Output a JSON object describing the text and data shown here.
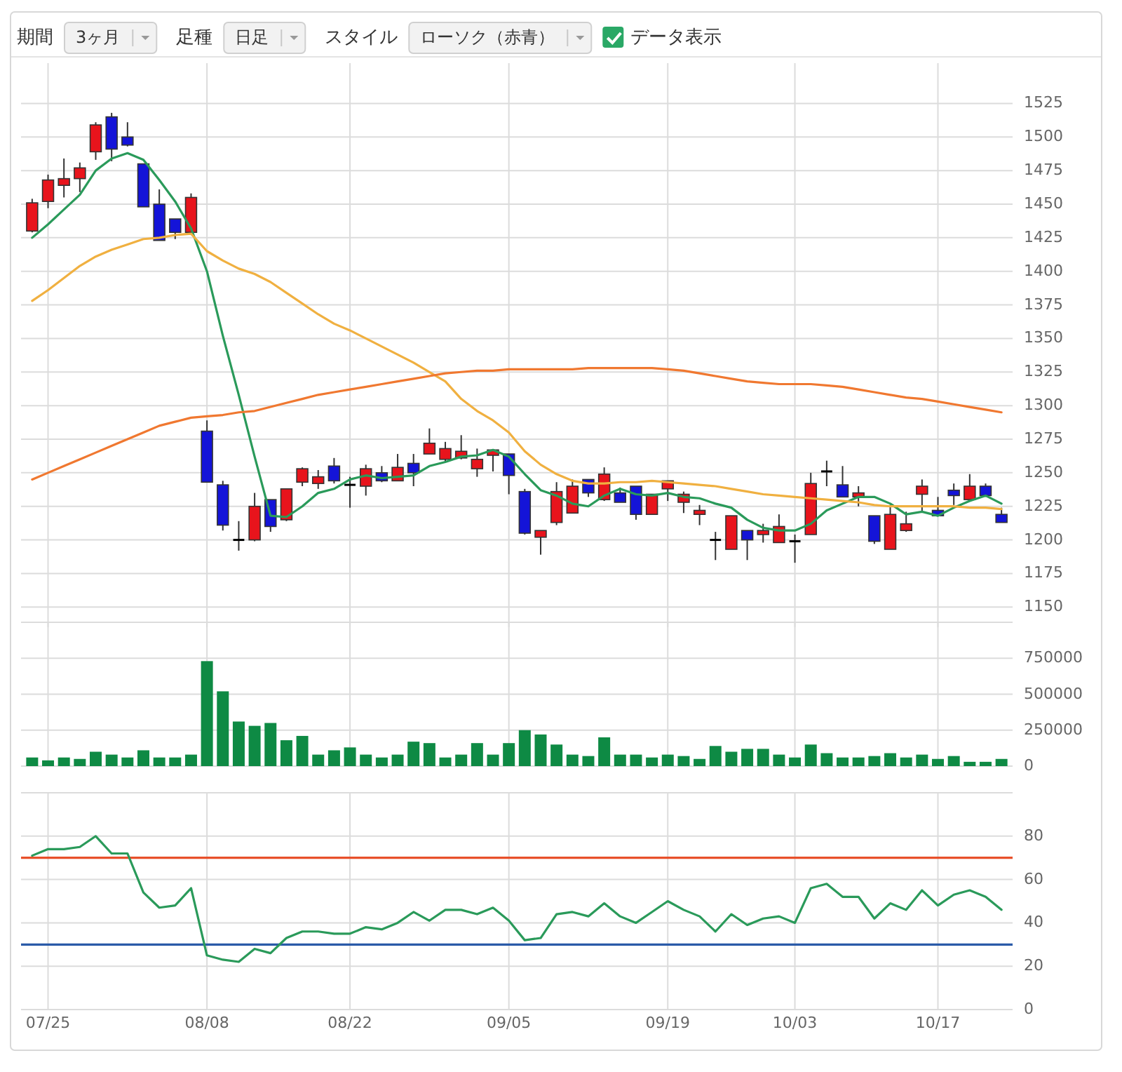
{
  "chart_data": [
    {
      "type": "other",
      "annotations": [
        "期間",
        "3ヶ月",
        "足種",
        "日足",
        "スタイル",
        "ローソク（赤青）",
        "データ表示"
      ]
    },
    {
      "type": "candlestick",
      "tick_labels": "y",
      "grid": true,
      "ylim": [
        1135,
        1555
      ],
      "yticks": [
        1150,
        1175,
        1200,
        1225,
        1250,
        1275,
        1300,
        1325,
        1350,
        1375,
        1400,
        1425,
        1450,
        1475,
        1500,
        1525
      ],
      "categories": [
        null,
        null,
        null,
        null,
        null,
        null,
        null,
        null,
        null,
        null,
        null,
        null,
        null,
        null,
        null,
        null,
        null,
        null,
        null,
        null,
        null,
        null,
        null,
        null,
        null,
        null,
        null,
        null,
        null,
        null,
        null,
        null,
        null,
        null,
        null,
        null,
        null,
        null,
        null,
        null,
        null,
        null,
        null,
        null,
        null,
        null,
        null,
        null,
        null,
        null,
        null,
        null,
        null,
        null,
        null,
        null,
        null,
        null,
        null,
        null,
        null,
        null
      ],
      "ohlc": [
        [
          1430,
          1454,
          1429,
          1451
        ],
        [
          1452,
          1472,
          1447,
          1468
        ],
        [
          1464,
          1484,
          1455,
          1469
        ],
        [
          1469,
          1481,
          1459,
          1477
        ],
        [
          1489,
          1511,
          1483,
          1509
        ],
        [
          1515,
          1518,
          1482,
          1491
        ],
        [
          1500,
          1511,
          1493,
          1494
        ],
        [
          1480,
          1480,
          1448,
          1448
        ],
        [
          1450,
          1461,
          1423,
          1423
        ],
        [
          1439,
          1439,
          1424,
          1429
        ],
        [
          1429,
          1458,
          1429,
          1455
        ],
        [
          1281,
          1289,
          1243,
          1243
        ],
        [
          1241,
          1244,
          1207,
          1211
        ],
        [
          1200,
          1214,
          1192,
          1200
        ],
        [
          1200,
          1235,
          1199,
          1225
        ],
        [
          1230,
          1230,
          1206,
          1210
        ],
        [
          1215,
          1238,
          1214,
          1238
        ],
        [
          1243,
          1254,
          1240,
          1253
        ],
        [
          1242,
          1252,
          1238,
          1247
        ],
        [
          1255,
          1261,
          1242,
          1244
        ],
        [
          1241,
          1247,
          1224,
          1241
        ],
        [
          1240,
          1256,
          1233,
          1253
        ],
        [
          1250,
          1255,
          1243,
          1244
        ],
        [
          1244,
          1264,
          1244,
          1254
        ],
        [
          1257,
          1264,
          1240,
          1250
        ],
        [
          1264,
          1283,
          1264,
          1272
        ],
        [
          1260,
          1273,
          1258,
          1268
        ],
        [
          1261,
          1278,
          1260,
          1266
        ],
        [
          1253,
          1268,
          1247,
          1260
        ],
        [
          1263,
          1267,
          1251,
          1267
        ],
        [
          1264,
          1264,
          1234,
          1248
        ],
        [
          1236,
          1238,
          1204,
          1205
        ],
        [
          1202,
          1207,
          1189,
          1207
        ],
        [
          1213,
          1243,
          1211,
          1236
        ],
        [
          1220,
          1245,
          1220,
          1240
        ],
        [
          1245,
          1245,
          1232,
          1235
        ],
        [
          1230,
          1254,
          1229,
          1249
        ],
        [
          1235,
          1239,
          1228,
          1228
        ],
        [
          1240,
          1240,
          1215,
          1219
        ],
        [
          1219,
          1234,
          1219,
          1234
        ],
        [
          1238,
          1244,
          1229,
          1244
        ],
        [
          1228,
          1236,
          1220,
          1234
        ],
        [
          1219,
          1226,
          1211,
          1222
        ],
        [
          1200,
          1206,
          1185,
          1200
        ],
        [
          1193,
          1218,
          1193,
          1218
        ],
        [
          1207,
          1207,
          1185,
          1200
        ],
        [
          1204,
          1212,
          1198,
          1207
        ],
        [
          1198,
          1219,
          1198,
          1210
        ],
        [
          1199,
          1204,
          1183,
          1199
        ],
        [
          1204,
          1250,
          1204,
          1242
        ],
        [
          1251,
          1259,
          1240,
          1251
        ],
        [
          1241,
          1255,
          1232,
          1232
        ],
        [
          1232,
          1240,
          1225,
          1235
        ],
        [
          1218,
          1218,
          1197,
          1199
        ],
        [
          1193,
          1226,
          1193,
          1219
        ],
        [
          1207,
          1221,
          1206,
          1212
        ],
        [
          1234,
          1245,
          1221,
          1240
        ],
        [
          1222,
          1232,
          1218,
          1218
        ],
        [
          1237,
          1242,
          1226,
          1233
        ],
        [
          1230,
          1249,
          1230,
          1240
        ],
        [
          1240,
          1242,
          1232,
          1233
        ],
        [
          1219,
          1224,
          1213,
          1213
        ]
      ],
      "colors": [
        "#e8141c",
        "#e8141c",
        "#e8141c",
        "#e8141c",
        "#e8141c",
        "#1414d8",
        "#1414d8",
        "#1414d8",
        "#1414d8",
        "#1414d8",
        "#e8141c",
        "#1414d8",
        "#1414d8",
        "#000000",
        "#e8141c",
        "#1414d8",
        "#e8141c",
        "#e8141c",
        "#e8141c",
        "#1414d8",
        "#000000",
        "#e8141c",
        "#1414d8",
        "#e8141c",
        "#1414d8",
        "#e8141c",
        "#e8141c",
        "#e8141c",
        "#e8141c",
        "#e8141c",
        "#1414d8",
        "#1414d8",
        "#e8141c",
        "#e8141c",
        "#e8141c",
        "#1414d8",
        "#e8141c",
        "#1414d8",
        "#1414d8",
        "#e8141c",
        "#e8141c",
        "#e8141c",
        "#e8141c",
        "#000000",
        "#e8141c",
        "#1414d8",
        "#e8141c",
        "#e8141c",
        "#000000",
        "#e8141c",
        "#000000",
        "#1414d8",
        "#e8141c",
        "#1414d8",
        "#e8141c",
        "#e8141c",
        "#e8141c",
        "#1414d8",
        "#1414d8",
        "#e8141c",
        "#1414d8",
        "#1414d8"
      ],
      "series": [
        {
          "type": "line",
          "color": "#2a9a5a",
          "values": [
            1425,
            1435,
            1446,
            1457,
            1475,
            1484,
            1488,
            1483,
            1468,
            1452,
            1432,
            1400,
            1352,
            1308,
            1262,
            1218,
            1217,
            1225,
            1235,
            1238,
            1245,
            1248,
            1246,
            1247,
            1248,
            1255,
            1258,
            1262,
            1263,
            1267,
            1262,
            1249,
            1237,
            1233,
            1227,
            1225,
            1233,
            1238,
            1234,
            1233,
            1235,
            1232,
            1231,
            1227,
            1224,
            1215,
            1209,
            1207,
            1207,
            1212,
            1222,
            1227,
            1232,
            1232,
            1227,
            1219,
            1221,
            1218,
            1224,
            1229,
            1233,
            1227
          ]
        },
        {
          "type": "line",
          "color": "#f0b040",
          "values": [
            1378,
            1386,
            1395,
            1404,
            1411,
            1416,
            1420,
            1424,
            1425,
            1427,
            1428,
            1415,
            1408,
            1402,
            1398,
            1392,
            1384,
            1376,
            1368,
            1361,
            1356,
            1350,
            1344,
            1338,
            1332,
            1325,
            1318,
            1305,
            1296,
            1289,
            1280,
            1266,
            1256,
            1249,
            1244,
            1242,
            1242,
            1243,
            1243,
            1244,
            1243,
            1242,
            1241,
            1240,
            1238,
            1236,
            1234,
            1233,
            1232,
            1231,
            1230,
            1229,
            1228,
            1226,
            1225,
            1225,
            1225,
            1225,
            1225,
            1224,
            1224,
            1223
          ]
        },
        {
          "type": "line",
          "color": "#f07830",
          "values": [
            1245,
            1250,
            1255,
            1260,
            1265,
            1270,
            1275,
            1280,
            1285,
            1288,
            1291,
            1292,
            1293,
            1295,
            1296,
            1299,
            1302,
            1305,
            1308,
            1310,
            1312,
            1314,
            1316,
            1318,
            1320,
            1322,
            1324,
            1325,
            1326,
            1326,
            1327,
            1327,
            1327,
            1327,
            1327,
            1328,
            1328,
            1328,
            1328,
            1328,
            1327,
            1326,
            1324,
            1322,
            1320,
            1318,
            1317,
            1316,
            1316,
            1316,
            1315,
            1314,
            1312,
            1310,
            1308,
            1306,
            1305,
            1303,
            1301,
            1299,
            1297,
            1295
          ]
        }
      ]
    },
    {
      "type": "bar",
      "tick_labels": "y",
      "grid": true,
      "color": "#0e8a44",
      "ylim": [
        0,
        1000000
      ],
      "yticks": [
        0,
        250000,
        500000,
        750000,
        {
          "value": 1000000,
          "label": null
        }
      ],
      "categories": [
        null,
        null,
        null,
        null,
        null,
        null,
        null,
        null,
        null,
        null,
        null,
        null,
        null,
        null,
        null,
        null,
        null,
        null,
        null,
        null,
        null,
        null,
        null,
        null,
        null,
        null,
        null,
        null,
        null,
        null,
        null,
        null,
        null,
        null,
        null,
        null,
        null,
        null,
        null,
        null,
        null,
        null,
        null,
        null,
        null,
        null,
        null,
        null,
        null,
        null,
        null,
        null,
        null,
        null,
        null,
        null,
        null,
        null,
        null,
        null,
        null,
        null
      ],
      "values": [
        60000,
        40000,
        60000,
        50000,
        100000,
        80000,
        60000,
        110000,
        60000,
        60000,
        80000,
        730000,
        520000,
        310000,
        280000,
        300000,
        180000,
        210000,
        80000,
        110000,
        130000,
        80000,
        60000,
        80000,
        170000,
        160000,
        60000,
        80000,
        160000,
        80000,
        160000,
        250000,
        220000,
        150000,
        80000,
        70000,
        200000,
        80000,
        80000,
        60000,
        80000,
        70000,
        50000,
        140000,
        100000,
        120000,
        120000,
        80000,
        60000,
        150000,
        90000,
        60000,
        60000,
        70000,
        90000,
        60000,
        80000,
        50000,
        70000,
        30000,
        30000,
        50000
      ]
    },
    {
      "type": "line",
      "grid": true,
      "ylim": [
        0,
        100
      ],
      "yticks": [
        0,
        20,
        40,
        60,
        80,
        {
          "value": 100,
          "label": null
        }
      ],
      "categories": [
        null,
        "07/25",
        null,
        null,
        null,
        null,
        null,
        null,
        null,
        null,
        null,
        "08/08",
        null,
        null,
        null,
        null,
        null,
        null,
        null,
        null,
        "08/22",
        null,
        null,
        null,
        null,
        null,
        null,
        null,
        null,
        null,
        "09/05",
        null,
        null,
        null,
        null,
        null,
        null,
        null,
        null,
        null,
        "09/19",
        null,
        null,
        null,
        null,
        null,
        null,
        null,
        "10/03",
        null,
        null,
        null,
        null,
        null,
        null,
        null,
        null,
        "10/17",
        null,
        null,
        null,
        null
      ],
      "ref_lines": [
        {
          "axis": "y",
          "value": 70,
          "color": "#e8502a"
        },
        {
          "axis": "y",
          "value": 30,
          "color": "#2a5aa8"
        }
      ],
      "series": [
        {
          "color": "#2a9a5a",
          "values": [
            71,
            74,
            74,
            75,
            80,
            72,
            72,
            54,
            47,
            48,
            56,
            25,
            23,
            22,
            28,
            26,
            33,
            36,
            36,
            35,
            35,
            38,
            37,
            40,
            45,
            41,
            46,
            46,
            44,
            47,
            41,
            32,
            33,
            44,
            45,
            43,
            49,
            43,
            40,
            45,
            50,
            46,
            43,
            36,
            44,
            39,
            42,
            43,
            40,
            56,
            58,
            52,
            52,
            42,
            49,
            46,
            55,
            48,
            53,
            55,
            52,
            46
          ]
        }
      ]
    }
  ]
}
